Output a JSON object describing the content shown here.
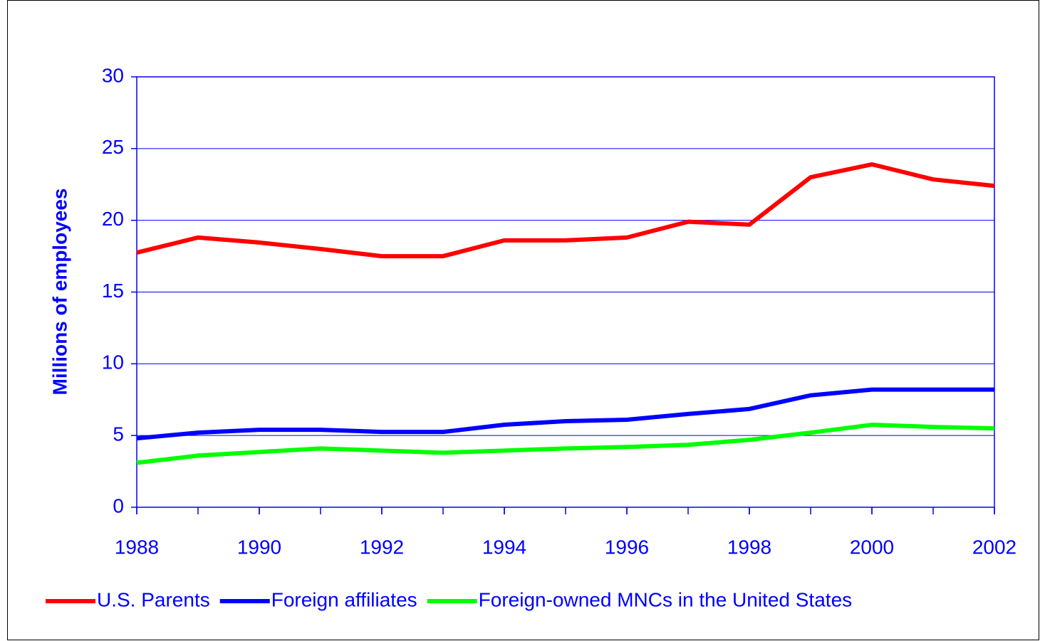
{
  "chart_data": {
    "type": "line",
    "y_label": "Millions of employees",
    "x": [
      1988,
      1989,
      1990,
      1991,
      1992,
      1993,
      1994,
      1995,
      1996,
      1997,
      1998,
      1999,
      2000,
      2001,
      2002
    ],
    "series": [
      {
        "name": "U.S. Parents",
        "color": "#ff0000",
        "values": [
          17.75,
          18.8,
          18.45,
          18.0,
          17.5,
          17.5,
          18.6,
          18.6,
          18.8,
          19.9,
          19.7,
          23.0,
          23.9,
          22.85,
          22.4
        ]
      },
      {
        "name": "Foreign affiliates",
        "color": "#0000ff",
        "values": [
          4.8,
          5.2,
          5.4,
          5.4,
          5.25,
          5.25,
          5.75,
          6.0,
          6.1,
          6.5,
          6.85,
          7.8,
          8.2,
          8.2,
          8.2
        ]
      },
      {
        "name": "Foreign-owned MNCs in the United States",
        "color": "#00ff00",
        "values": [
          3.1,
          3.6,
          3.85,
          4.1,
          3.95,
          3.8,
          3.95,
          4.1,
          4.2,
          4.35,
          4.7,
          5.2,
          5.75,
          5.6,
          5.5
        ]
      }
    ],
    "xlim": [
      1988,
      2002
    ],
    "xticks": [
      1988,
      1990,
      1992,
      1994,
      1996,
      1998,
      2000,
      2002
    ],
    "ylim": [
      0,
      30
    ],
    "yticks": [
      0,
      5,
      10,
      15,
      20,
      25,
      30
    ],
    "grid": true,
    "legend": "bottom"
  }
}
